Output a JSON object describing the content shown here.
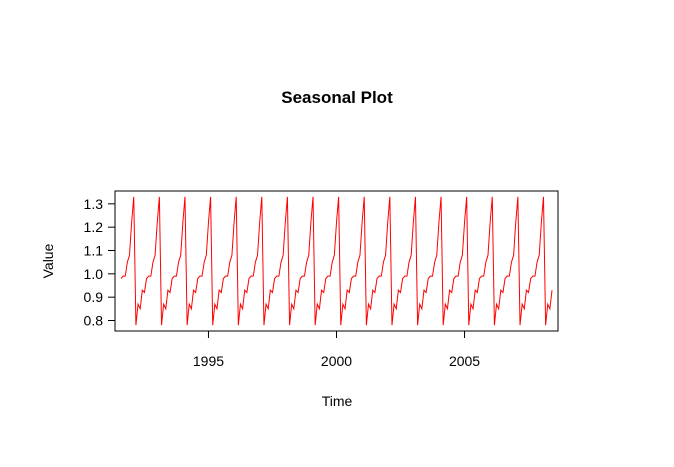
{
  "chart_data": {
    "type": "line",
    "title": "Seasonal Plot",
    "xlabel": "Time",
    "ylabel": "Value",
    "xlim": [
      1991.35,
      2008.65
    ],
    "ylim": [
      0.755,
      1.355
    ],
    "x_ticks": [
      1995,
      2000,
      2005
    ],
    "x_tick_labels": [
      "1995",
      "2000",
      "2005"
    ],
    "y_ticks": [
      0.8,
      0.9,
      1.0,
      1.1,
      1.2,
      1.3
    ],
    "y_tick_labels": [
      "0.8",
      "0.9",
      "1.0",
      "1.1",
      "1.2",
      "1.3"
    ],
    "grid": false,
    "legend": false,
    "series": [
      {
        "color": "#ff0000",
        "start": 1991.583,
        "frequency": 12,
        "seasonal_pattern": [
          0.78,
          0.87,
          0.85,
          0.93,
          0.92,
          0.98,
          0.99,
          0.99,
          1.05,
          1.08,
          1.22,
          1.33
        ],
        "pattern_start_month": 5,
        "end": 2008.417
      }
    ]
  }
}
